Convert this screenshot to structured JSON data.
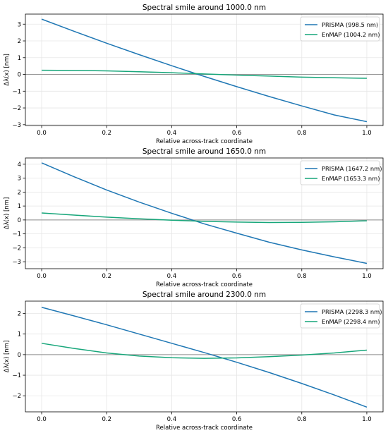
{
  "chart_data": [
    {
      "type": "line",
      "title": "Spectral smile around 1000.0 nm",
      "xlabel": "Relative across-track coordinate",
      "ylabel": "Δλ(x) [nm]",
      "xlim": [
        -0.05,
        1.05
      ],
      "ylim": [
        -3.05,
        3.6
      ],
      "xticks": [
        0.0,
        0.2,
        0.4,
        0.6,
        0.8,
        1.0
      ],
      "xtick_labels": [
        "0.0",
        "0.2",
        "0.4",
        "0.6",
        "0.8",
        "1.0"
      ],
      "yticks": [
        -3,
        -2,
        -1,
        0,
        1,
        2,
        3
      ],
      "ytick_labels": [
        "−3",
        "−2",
        "−1",
        "0",
        "1",
        "2",
        "3"
      ],
      "grid": true,
      "legend_position": "top-right",
      "reference_line_y": 0,
      "series": [
        {
          "name": "PRISMA (998.5 nm)",
          "color": "#1f77b4",
          "x": [
            0.0,
            0.1,
            0.2,
            0.3,
            0.4,
            0.5,
            0.6,
            0.7,
            0.8,
            0.9,
            1.0
          ],
          "y": [
            3.3,
            2.57,
            1.86,
            1.18,
            0.52,
            -0.12,
            -0.73,
            -1.32,
            -1.88,
            -2.42,
            -2.82
          ]
        },
        {
          "name": "EnMAP (1004.2 nm)",
          "color": "#17a67a",
          "x": [
            0.0,
            0.1,
            0.2,
            0.3,
            0.4,
            0.5,
            0.6,
            0.7,
            0.8,
            0.9,
            1.0
          ],
          "y": [
            0.25,
            0.24,
            0.21,
            0.16,
            0.1,
            0.03,
            -0.04,
            -0.1,
            -0.16,
            -0.2,
            -0.23
          ]
        }
      ]
    },
    {
      "type": "line",
      "title": "Spectral smile around 1650.0 nm",
      "xlabel": "Relative across-track coordinate",
      "ylabel": "Δλ(x) [nm]",
      "xlim": [
        -0.05,
        1.05
      ],
      "ylim": [
        -3.5,
        4.45
      ],
      "xticks": [
        0.0,
        0.2,
        0.4,
        0.6,
        0.8,
        1.0
      ],
      "xtick_labels": [
        "0.0",
        "0.2",
        "0.4",
        "0.6",
        "0.8",
        "1.0"
      ],
      "yticks": [
        -3,
        -2,
        -1,
        0,
        1,
        2,
        3,
        4
      ],
      "ytick_labels": [
        "−3",
        "−2",
        "−1",
        "0",
        "1",
        "2",
        "3",
        "4"
      ],
      "grid": true,
      "legend_position": "top-right",
      "reference_line_y": 0,
      "series": [
        {
          "name": "PRISMA (1647.2 nm)",
          "color": "#1f77b4",
          "x": [
            0.0,
            0.1,
            0.2,
            0.3,
            0.4,
            0.5,
            0.6,
            0.7,
            0.8,
            0.9,
            1.0
          ],
          "y": [
            4.1,
            3.1,
            2.15,
            1.28,
            0.48,
            -0.28,
            -0.95,
            -1.6,
            -2.15,
            -2.65,
            -3.12
          ]
        },
        {
          "name": "EnMAP (1653.3 nm)",
          "color": "#17a67a",
          "x": [
            0.0,
            0.1,
            0.2,
            0.3,
            0.4,
            0.5,
            0.6,
            0.7,
            0.8,
            0.9,
            1.0
          ],
          "y": [
            0.5,
            0.35,
            0.2,
            0.08,
            -0.02,
            -0.1,
            -0.15,
            -0.18,
            -0.17,
            -0.13,
            -0.06
          ]
        }
      ]
    },
    {
      "type": "line",
      "title": "Spectral smile around 2300.0 nm",
      "xlabel": "Relative across-track coordinate",
      "ylabel": "Δλ(x) [nm]",
      "xlim": [
        -0.05,
        1.05
      ],
      "ylim": [
        -2.78,
        2.6
      ],
      "xticks": [
        0.0,
        0.2,
        0.4,
        0.6,
        0.8,
        1.0
      ],
      "xtick_labels": [
        "0.0",
        "0.2",
        "0.4",
        "0.6",
        "0.8",
        "1.0"
      ],
      "yticks": [
        -2,
        -1,
        0,
        1,
        2
      ],
      "ytick_labels": [
        "−2",
        "−1",
        "0",
        "1",
        "2"
      ],
      "grid": true,
      "legend_position": "top-right",
      "reference_line_y": 0,
      "series": [
        {
          "name": "PRISMA (2298.3 nm)",
          "color": "#1f77b4",
          "x": [
            0.0,
            0.1,
            0.2,
            0.3,
            0.4,
            0.5,
            0.6,
            0.7,
            0.8,
            0.9,
            1.0
          ],
          "y": [
            2.3,
            1.88,
            1.45,
            1.0,
            0.55,
            0.1,
            -0.37,
            -0.87,
            -1.4,
            -1.96,
            -2.55
          ]
        },
        {
          "name": "EnMAP (2298.4 nm)",
          "color": "#17a67a",
          "x": [
            0.0,
            0.1,
            0.2,
            0.3,
            0.4,
            0.5,
            0.6,
            0.7,
            0.8,
            0.9,
            1.0
          ],
          "y": [
            0.55,
            0.3,
            0.08,
            -0.07,
            -0.15,
            -0.18,
            -0.16,
            -0.1,
            -0.02,
            0.08,
            0.22
          ]
        }
      ]
    }
  ]
}
